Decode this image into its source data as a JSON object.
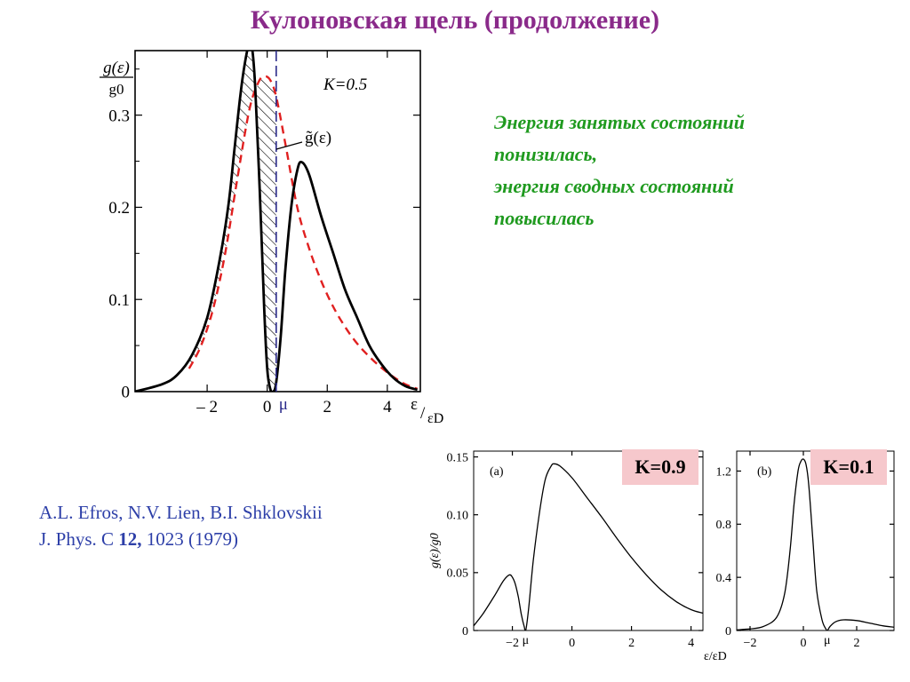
{
  "title": "Кулоновская щель (продолжение)",
  "annotation": [
    "Энергия занятых состояний",
    "понизилась,",
    "энергия сводных состояний",
    "повысилась"
  ],
  "reference": {
    "authors": "A.L. Efros, N.V. Lien, B.I. Shklovskii",
    "journal": "J. Phys. C",
    "volume": "12,",
    "pages": "1023 (1979)"
  },
  "colors": {
    "title": "#8a2a8a",
    "annotation": "#1f9a1f",
    "reference": "#2d3fa8",
    "reference_curve": "#e02020",
    "mu_line": "#2a2a8a",
    "k_box": "#f6c8cc"
  },
  "chart_data": [
    {
      "type": "line",
      "ylabel_num": "g(ε)",
      "ylabel_den": "g0",
      "xlabel_num": "ε",
      "xlabel_den": "εD",
      "param_label": "K=0.5",
      "series_label": "g̃(ε)",
      "mu_label": "μ",
      "xlim": [
        -4.4,
        5.1
      ],
      "ylim": [
        0,
        0.37
      ],
      "xticks": [
        -2,
        0,
        2,
        4
      ],
      "xtick_labels": [
        "– 2",
        "0",
        "2",
        "4"
      ],
      "yticks": [
        0,
        0.1,
        0.2,
        0.3
      ],
      "ytick_labels": [
        "0",
        "0.1",
        "0.2",
        "0.3"
      ],
      "mu": 0.3,
      "hatched": "region between g(ε) and g̃(ε) for ε < μ",
      "series": [
        {
          "key": "g",
          "style": "solid black",
          "x": [
            -4.4,
            -3.5,
            -3.0,
            -2.5,
            -2.0,
            -1.6,
            -1.3,
            -1.1,
            -0.9,
            -0.75,
            -0.6,
            -0.5,
            -0.4,
            -0.25,
            -0.1,
            0.0,
            0.1,
            0.2,
            0.3,
            0.45,
            0.6,
            0.8,
            1.0,
            1.15,
            1.4,
            1.8,
            2.2,
            2.6,
            3.0,
            3.4,
            3.8,
            4.2,
            4.6,
            5.0
          ],
          "y": [
            0.0,
            0.008,
            0.018,
            0.04,
            0.08,
            0.14,
            0.2,
            0.26,
            0.32,
            0.355,
            0.378,
            0.372,
            0.33,
            0.22,
            0.09,
            0.025,
            0.003,
            0.0,
            0.01,
            0.06,
            0.13,
            0.2,
            0.24,
            0.249,
            0.235,
            0.19,
            0.15,
            0.11,
            0.08,
            0.05,
            0.03,
            0.015,
            0.006,
            0.002
          ]
        },
        {
          "key": "g_tilde",
          "style": "dashed red",
          "x": [
            -2.6,
            -2.2,
            -1.8,
            -1.4,
            -1.0,
            -0.6,
            -0.3,
            -0.1,
            0.1,
            0.3,
            0.6,
            1.0,
            1.4,
            1.8,
            2.2,
            2.6,
            3.0,
            3.4,
            3.8,
            4.2,
            4.6,
            5.0
          ],
          "y": [
            0.025,
            0.05,
            0.09,
            0.15,
            0.23,
            0.305,
            0.335,
            0.342,
            0.338,
            0.32,
            0.27,
            0.2,
            0.155,
            0.12,
            0.092,
            0.07,
            0.052,
            0.038,
            0.026,
            0.016,
            0.008,
            0.003
          ]
        }
      ]
    },
    {
      "type": "line",
      "panel": "(a)",
      "k_label": "K=0.9",
      "ylabel": "g(ε)/g0",
      "xlim": [
        -3.3,
        4.4
      ],
      "ylim": [
        0,
        0.155
      ],
      "xticks": [
        -2,
        0,
        2,
        4
      ],
      "xtick_labels": [
        "−2",
        "0",
        "2",
        "4"
      ],
      "yticks": [
        0,
        0.05,
        0.1,
        0.15
      ],
      "ytick_labels": [
        "0",
        "0.05",
        "0.10",
        "0.15"
      ],
      "mu": -1.55,
      "mu_label": "μ",
      "series": [
        {
          "key": "g",
          "x": [
            -3.3,
            -3.0,
            -2.6,
            -2.3,
            -2.1,
            -2.0,
            -1.9,
            -1.8,
            -1.7,
            -1.6,
            -1.55,
            -1.45,
            -1.3,
            -1.1,
            -0.9,
            -0.7,
            -0.6,
            -0.4,
            0.0,
            0.5,
            1.0,
            1.5,
            2.0,
            2.5,
            3.0,
            3.5,
            4.0,
            4.4
          ],
          "y": [
            0.004,
            0.014,
            0.03,
            0.043,
            0.048,
            0.046,
            0.04,
            0.029,
            0.014,
            0.003,
            0.0,
            0.02,
            0.06,
            0.1,
            0.13,
            0.142,
            0.144,
            0.142,
            0.132,
            0.115,
            0.098,
            0.08,
            0.063,
            0.048,
            0.035,
            0.025,
            0.018,
            0.015
          ]
        }
      ]
    },
    {
      "type": "line",
      "panel": "(b)",
      "k_label": "K=0.1",
      "xlabel": "ε/εD",
      "xlim": [
        -2.5,
        3.4
      ],
      "ylim": [
        0,
        1.35
      ],
      "xticks": [
        -2,
        0,
        2
      ],
      "xtick_labels": [
        "−2",
        "0",
        "2"
      ],
      "yticks": [
        0,
        0.4,
        0.8,
        1.2
      ],
      "ytick_labels": [
        "0",
        "0.4",
        "0.8",
        "1.2"
      ],
      "mu": 0.9,
      "mu_label": "μ",
      "series": [
        {
          "key": "g",
          "x": [
            -2.5,
            -2.0,
            -1.5,
            -1.0,
            -0.7,
            -0.5,
            -0.35,
            -0.2,
            -0.1,
            0.0,
            0.1,
            0.2,
            0.35,
            0.5,
            0.7,
            0.85,
            0.9,
            1.0,
            1.2,
            1.5,
            2.0,
            2.5,
            3.0,
            3.4
          ],
          "y": [
            0.005,
            0.012,
            0.03,
            0.1,
            0.28,
            0.6,
            0.95,
            1.2,
            1.27,
            1.29,
            1.25,
            1.1,
            0.7,
            0.3,
            0.08,
            0.01,
            0.0,
            0.03,
            0.065,
            0.08,
            0.075,
            0.055,
            0.035,
            0.025
          ]
        }
      ]
    }
  ]
}
